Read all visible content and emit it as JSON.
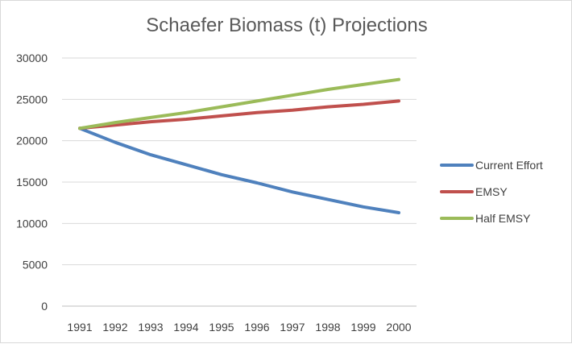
{
  "chart_data": {
    "type": "line",
    "title": "Schaefer Biomass (t) Projections",
    "xlabel": "",
    "ylabel": "",
    "categories": [
      "1991",
      "1992",
      "1993",
      "1994",
      "1995",
      "1996",
      "1997",
      "1998",
      "1999",
      "2000"
    ],
    "ylim": [
      0,
      30000
    ],
    "yticks": [
      0,
      5000,
      10000,
      15000,
      20000,
      25000,
      30000
    ],
    "grid": true,
    "legend_position": "right",
    "series": [
      {
        "name": "Current Effort",
        "color": "#4f81bd",
        "values": [
          21500,
          19800,
          18300,
          17100,
          15900,
          14900,
          13800,
          12900,
          12000,
          11300
        ]
      },
      {
        "name": "EMSY",
        "color": "#c0504d",
        "values": [
          21500,
          21900,
          22300,
          22600,
          23000,
          23400,
          23700,
          24100,
          24400,
          24800
        ]
      },
      {
        "name": "Half EMSY",
        "color": "#9bbb59",
        "values": [
          21500,
          22200,
          22800,
          23400,
          24100,
          24800,
          25500,
          26200,
          26800,
          27400
        ]
      }
    ]
  }
}
